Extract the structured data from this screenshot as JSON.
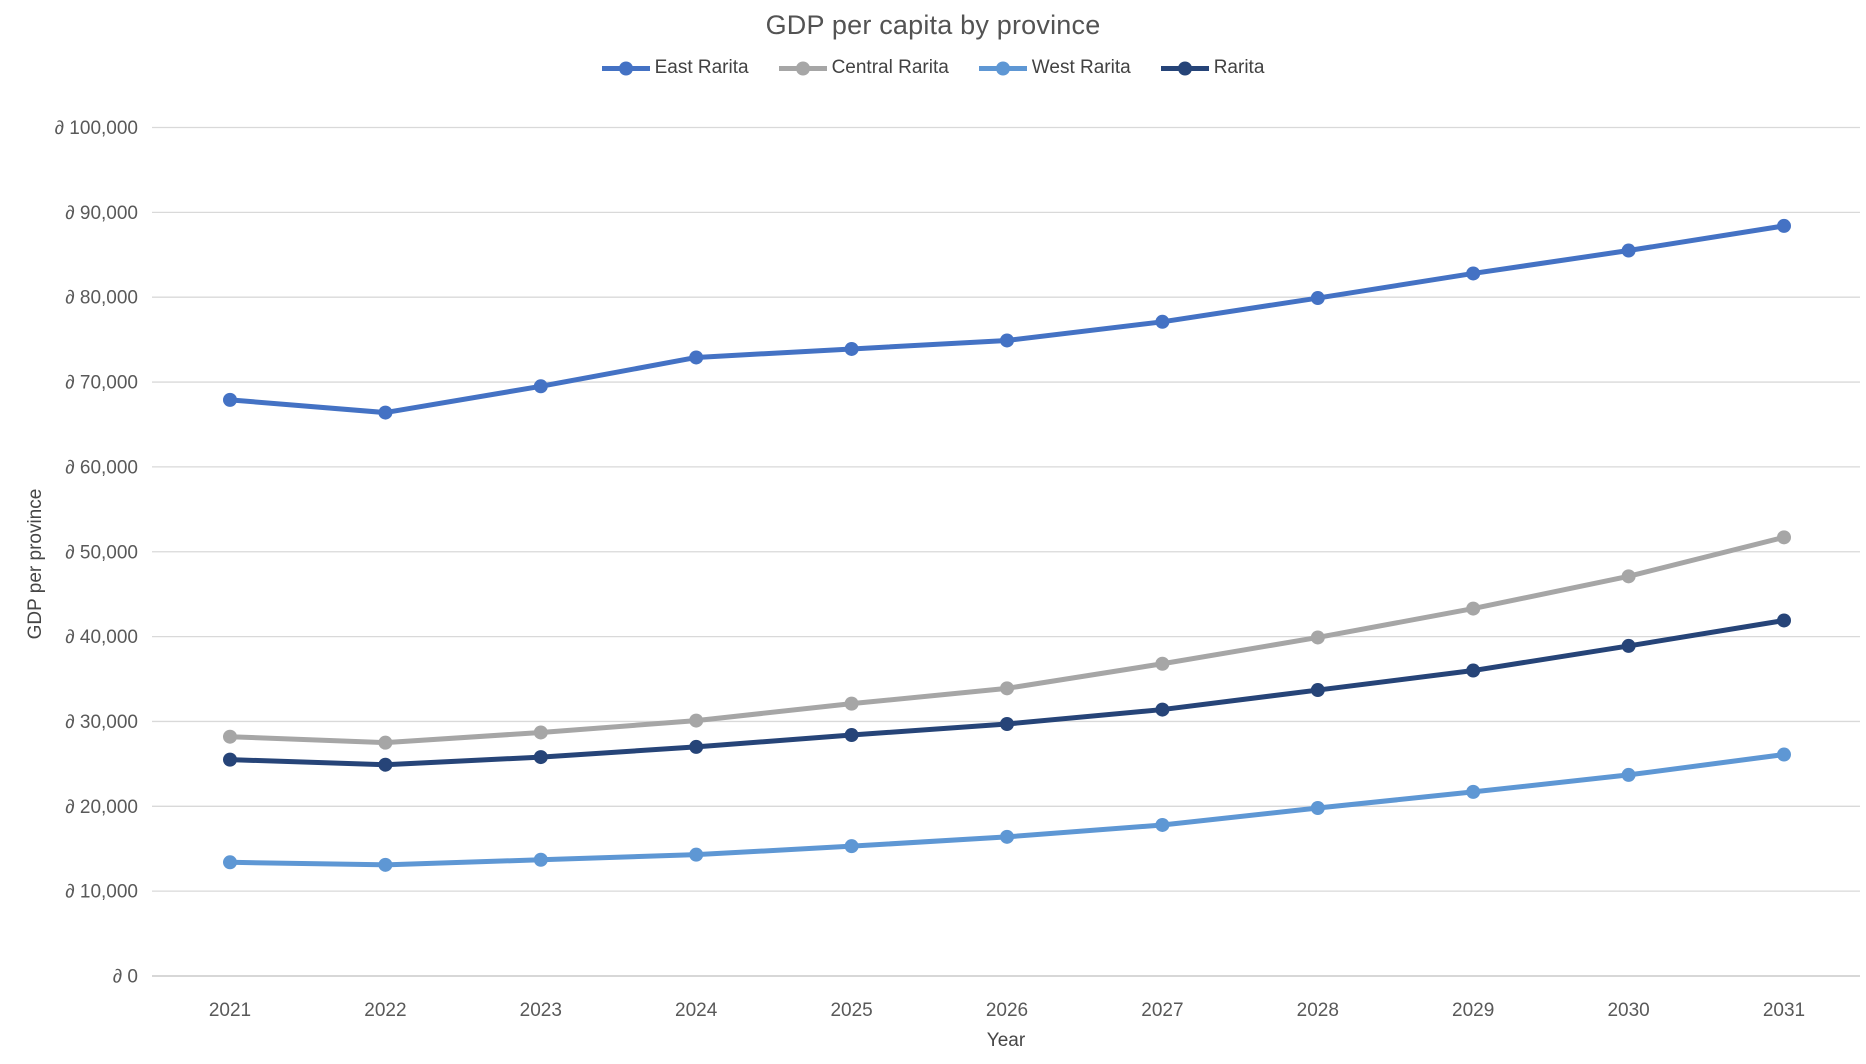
{
  "title": "GDP per capita by province",
  "axes": {
    "x_label": "Year",
    "y_label": "GDP per province",
    "currency_prefix": "∂"
  },
  "colors": {
    "gridline": "#d9d9d9",
    "axis_line": "#bfbfbf",
    "title_text": "#535353",
    "tick_text": "#595959"
  },
  "chart_data": {
    "type": "line",
    "title": "GDP per capita by province",
    "xlabel": "Year",
    "ylabel": "GDP per province",
    "x": [
      2021,
      2022,
      2023,
      2024,
      2025,
      2026,
      2027,
      2028,
      2029,
      2030,
      2031
    ],
    "ylim": [
      0,
      100000
    ],
    "y_tick_interval": 10000,
    "y_tick_prefix": "∂",
    "grid": true,
    "legend_position": "top",
    "series": [
      {
        "name": "East Rarita",
        "color": "#4472c4",
        "values": [
          67900,
          66400,
          69500,
          72900,
          73900,
          74900,
          77100,
          79900,
          82800,
          85500,
          88400
        ]
      },
      {
        "name": "Central Rarita",
        "color": "#a6a6a6",
        "values": [
          28200,
          27500,
          28700,
          30100,
          32100,
          33900,
          36800,
          39900,
          43300,
          47100,
          51700
        ]
      },
      {
        "name": "West Rarita",
        "color": "#5e97d4",
        "values": [
          13400,
          13100,
          13700,
          14300,
          15300,
          16400,
          17800,
          19800,
          21700,
          23700,
          26100
        ]
      },
      {
        "name": "Rarita",
        "color": "#264478",
        "values": [
          25500,
          24900,
          25800,
          27000,
          28400,
          29700,
          31400,
          33700,
          36000,
          38900,
          41900
        ]
      }
    ]
  }
}
